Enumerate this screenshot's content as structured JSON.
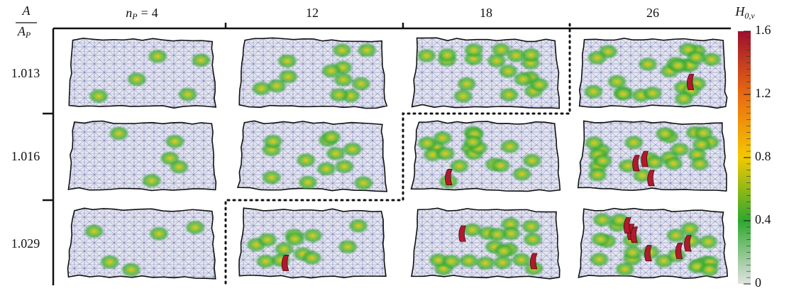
{
  "corner_label": {
    "numerator": "A",
    "denominator": "A",
    "denominator_subscript": "P"
  },
  "column_variable": {
    "symbol": "n",
    "subscript": "P",
    "relation": "="
  },
  "columns": [
    "4",
    "12",
    "18",
    "26"
  ],
  "rows": [
    "1.013",
    "1.016",
    "1.029"
  ],
  "colorbar": {
    "symbol": "H",
    "subscript": "0,v",
    "range": [
      0,
      1.6
    ],
    "ticks": [
      0,
      0.4,
      0.8,
      1.2,
      1.6
    ]
  }
}
